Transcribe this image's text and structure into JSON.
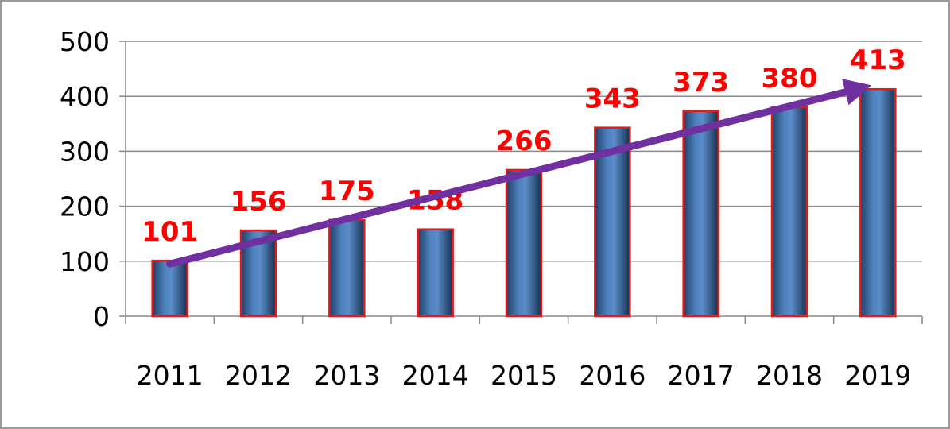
{
  "chart_data": {
    "type": "bar",
    "categories": [
      "2011",
      "2012",
      "2013",
      "2014",
      "2015",
      "2016",
      "2017",
      "2018",
      "2019"
    ],
    "values": [
      101,
      156,
      175,
      158,
      266,
      343,
      373,
      380,
      413
    ],
    "data_labels": [
      "101",
      "156",
      "175",
      "158",
      "266",
      "343",
      "373",
      "380",
      "413"
    ],
    "y_ticks": [
      "0",
      "100",
      "200",
      "300",
      "400",
      "500"
    ],
    "ylim": [
      0,
      500
    ],
    "grid": true,
    "legend": "none",
    "trend_arrow": {
      "from_value": 95,
      "to_value": 420
    },
    "colors": {
      "bar_fill": "#4f81bd",
      "bar_edge": "#e3191c",
      "data_label": "#ff0000",
      "trend_arrow": "#7030a0",
      "grid": "#888888",
      "frame": "#9a9a9a"
    }
  }
}
